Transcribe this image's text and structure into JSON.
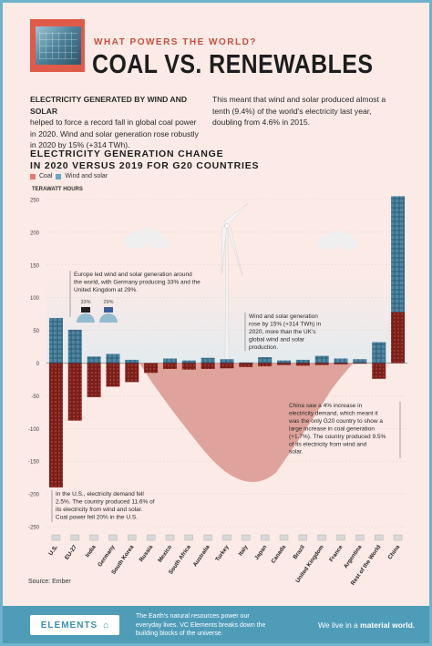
{
  "header": {
    "supertitle": "WHAT POWERS THE WORLD?",
    "title": "COAL VS. RENEWABLES"
  },
  "intro": {
    "left_heading": "ELECTRICITY GENERATED BY WIND AND SOLAR",
    "left_body": "helped to force a record fall in global coal power in 2020. Wind and solar generation rose robustly in 2020 by 15% (+314 TWh).",
    "right_body": "This meant that wind and solar produced almost a tenth (9.4%) of the world's electricity last year, doubling from 4.6% in 2015."
  },
  "chart_heading": {
    "line1": "ELECTRICITY GENERATION CHANGE",
    "line2": "IN 2020 VERSUS 2019 FOR G20 COUNTRIES"
  },
  "legend": {
    "coal": "Coal",
    "wind_solar": "Wind and solar"
  },
  "y_unit_label": "TERAWATT HOURS",
  "annotations": {
    "europe": "Europe led wind and solar generation around the world, with Germany producing 33% and the United Kingdom at 29%.",
    "germany_pct": "33%",
    "uk_pct": "29%",
    "global": "Wind and solar generation rose by 15% (+314 TWh) in 2020, more than the UK's global wind and solar production.",
    "china": "China saw a 4% increase in electricity demand, which meant it was the only G20 country to show a large increase in coal generation (+1.7%). The country produced 9.5% of its electricity from wind and solar.",
    "us": "In the U.S., electricity demand fell 2.5%. The country produced 11.6% of its electricity from wind and solar. Coal power fell 20% in the U.S."
  },
  "source": "Source: Ember",
  "footer": {
    "brand": "ELEMENTS",
    "text": "The Earth's natural resources power our everyday lives. VC Elements breaks down the building blocks of the universe.",
    "tagline_prefix": "We live in a ",
    "tagline_bold": "material world."
  },
  "colors": {
    "coal": "#e07b6f",
    "wind_solar": "#6aa6c4",
    "coal_dark": "#7a1f1a",
    "wind_dark": "#2d5b73",
    "accent": "#c6503f",
    "frame": "#6fb2cc"
  },
  "chart_data": {
    "type": "bar",
    "ylim": [
      -250,
      250
    ],
    "yticks": [
      -250,
      -200,
      -150,
      -100,
      -50,
      0,
      50,
      100,
      150,
      200,
      250
    ],
    "categories": [
      "U.S.",
      "EU-27",
      "India",
      "Germany",
      "South Korea",
      "Russia",
      "Mexico",
      "South Africa",
      "Australia",
      "Turkey",
      "Italy",
      "Japan",
      "Canada",
      "Brazil",
      "United Kingdom",
      "France",
      "Argentina",
      "Rest of the World",
      "China"
    ],
    "series": [
      {
        "name": "Coal",
        "values": [
          -190,
          -88,
          -52,
          -36,
          -29,
          -15,
          -9,
          -10,
          -9,
          -8,
          -6,
          -5,
          -3,
          -4,
          -3,
          -2,
          -1,
          -24,
          78
        ]
      },
      {
        "name": "Wind and solar",
        "values": [
          69,
          51,
          10,
          14,
          5,
          0,
          7,
          4,
          8,
          6,
          1,
          9,
          4,
          5,
          11,
          7,
          6,
          32,
          177
        ]
      }
    ]
  }
}
